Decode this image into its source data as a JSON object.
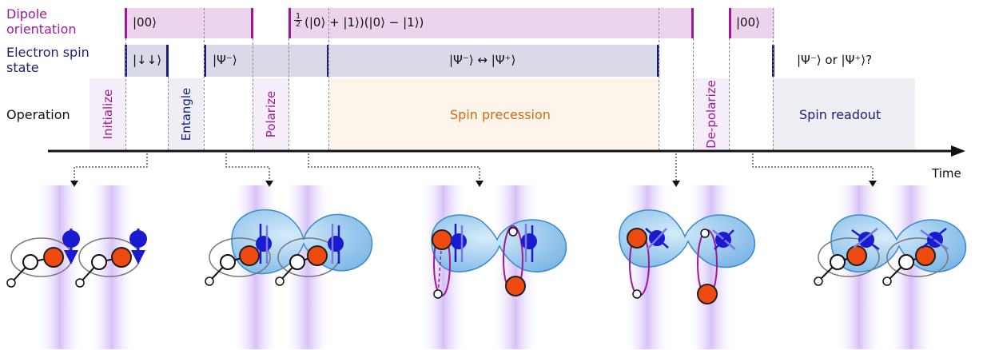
{
  "rows": {
    "dipole": "Dipole orientation",
    "electron": "Electron spin state",
    "operation": "Operation"
  },
  "dipole_states": {
    "s1": "|00⟩",
    "s2_prefix": "(|0⟩ + |1⟩)(|0⟩ − |1⟩)",
    "s2_frac_num": "1",
    "s2_frac_den": "2",
    "s3": "|00⟩"
  },
  "spin_states": {
    "s1": "|↓↓⟩",
    "s2": "|Ψ⁻⟩",
    "s3": "|Ψ⁻⟩ ↔ |Ψ⁺⟩",
    "s4": "|Ψ⁻⟩ or |Ψ⁺⟩?"
  },
  "operations": {
    "initialize": "Initialize",
    "entangle": "Entangle",
    "polarize": "Polarize",
    "precession": "Spin precession",
    "depolarize": "De-polarize",
    "readout": "Spin readout"
  },
  "axis": {
    "label": "Time"
  },
  "colors": {
    "purple": "#a0189a",
    "navy": "#1b1f7a",
    "orange": "#d06a14",
    "dipole_fill": "#ecd5ec",
    "spin_fill": "#d9d9e8",
    "precession_fill": "#fdf4ea",
    "readout_fill": "#eeeef5"
  }
}
